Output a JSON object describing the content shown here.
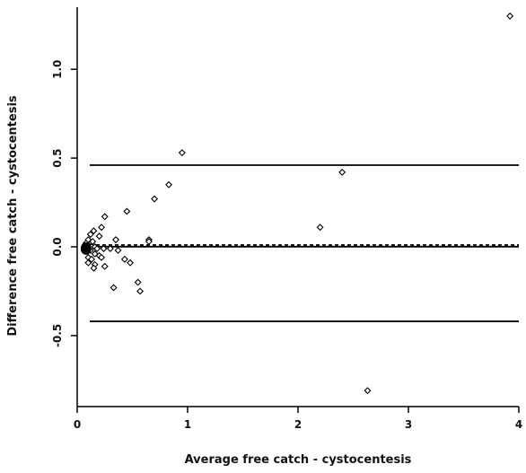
{
  "chart_data": {
    "type": "scatter",
    "title": "",
    "xlabel": "Average free catch - cystocentesis",
    "ylabel": "Difference free catch - cystocentesis",
    "xlim": [
      0,
      4
    ],
    "ylim": [
      -0.9,
      1.35
    ],
    "xticks": [
      0,
      1,
      2,
      3,
      4
    ],
    "yticks": [
      -0.5,
      0.0,
      0.5,
      1.0
    ],
    "xtick_labels": [
      "0",
      "1",
      "2",
      "3",
      "4"
    ],
    "ytick_labels": [
      "-0.5",
      "0.0",
      "0.5",
      "1.0"
    ],
    "grid": false,
    "reference_lines": {
      "upper_limit": 0.46,
      "mean": 0.01,
      "lower_limit": -0.42
    },
    "points": [
      {
        "x": 3.92,
        "y": 1.3
      },
      {
        "x": 0.95,
        "y": 0.53
      },
      {
        "x": 2.4,
        "y": 0.42
      },
      {
        "x": 0.83,
        "y": 0.35
      },
      {
        "x": 0.7,
        "y": 0.27
      },
      {
        "x": 0.45,
        "y": 0.2
      },
      {
        "x": 0.25,
        "y": 0.17
      },
      {
        "x": 2.2,
        "y": 0.11
      },
      {
        "x": 0.22,
        "y": 0.11
      },
      {
        "x": 0.15,
        "y": 0.09
      },
      {
        "x": 0.12,
        "y": 0.07
      },
      {
        "x": 0.2,
        "y": 0.06
      },
      {
        "x": 0.35,
        "y": 0.04
      },
      {
        "x": 0.65,
        "y": 0.04
      },
      {
        "x": 0.65,
        "y": 0.03
      },
      {
        "x": 0.1,
        "y": 0.04
      },
      {
        "x": 0.14,
        "y": 0.03
      },
      {
        "x": 0.08,
        "y": 0.02
      },
      {
        "x": 0.1,
        "y": 0.01
      },
      {
        "x": 0.11,
        "y": 0.0
      },
      {
        "x": 0.13,
        "y": 0.0
      },
      {
        "x": 0.16,
        "y": 0.0
      },
      {
        "x": 0.18,
        "y": -0.01
      },
      {
        "x": 0.07,
        "y": -0.01
      },
      {
        "x": 0.09,
        "y": -0.02
      },
      {
        "x": 0.12,
        "y": -0.02
      },
      {
        "x": 0.24,
        "y": -0.01
      },
      {
        "x": 0.3,
        "y": -0.01
      },
      {
        "x": 0.37,
        "y": -0.02
      },
      {
        "x": 0.16,
        "y": -0.04
      },
      {
        "x": 0.2,
        "y": -0.05
      },
      {
        "x": 0.1,
        "y": -0.06
      },
      {
        "x": 0.13,
        "y": -0.07
      },
      {
        "x": 0.22,
        "y": -0.06
      },
      {
        "x": 0.43,
        "y": -0.07
      },
      {
        "x": 0.48,
        "y": -0.09
      },
      {
        "x": 0.1,
        "y": -0.09
      },
      {
        "x": 0.16,
        "y": -0.1
      },
      {
        "x": 0.25,
        "y": -0.11
      },
      {
        "x": 0.15,
        "y": -0.12
      },
      {
        "x": 0.55,
        "y": -0.2
      },
      {
        "x": 0.33,
        "y": -0.23
      },
      {
        "x": 0.57,
        "y": -0.25
      },
      {
        "x": 2.63,
        "y": -0.81
      }
    ],
    "dense_cluster": {
      "x": 0.08,
      "y": -0.01
    }
  }
}
